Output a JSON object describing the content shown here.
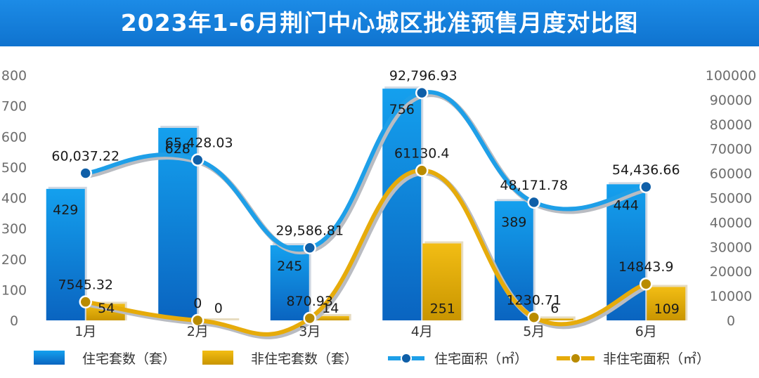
{
  "title": "2023年1-6月荆门中心城区批准预售月度对比图",
  "colors": {
    "title_bg": "#1c8be6",
    "bar_res": "#1a8ae0",
    "bar_nonres": "#e3ad10",
    "line_res": "#1e9fe8",
    "line_nonres": "#e6ab0a"
  },
  "chart_data": {
    "type": "bar+line",
    "categories": [
      "1月",
      "2月",
      "3月",
      "4月",
      "5月",
      "6月"
    ],
    "y_left": {
      "min": 0,
      "max": 800,
      "ticks": [
        0,
        100,
        200,
        300,
        400,
        500,
        600,
        700,
        800
      ]
    },
    "y_right": {
      "min": 0,
      "max": 100000,
      "ticks": [
        0,
        10000,
        20000,
        30000,
        40000,
        50000,
        60000,
        70000,
        80000,
        90000,
        100000
      ]
    },
    "series": [
      {
        "name": "住宅套数（套）",
        "kind": "bar",
        "axis": "left",
        "values": [
          429,
          628,
          245,
          756,
          389,
          444
        ],
        "labels": [
          "429",
          "628",
          "245",
          "756",
          "389",
          "444"
        ]
      },
      {
        "name": "非住宅套数（套）",
        "kind": "bar",
        "axis": "left",
        "values": [
          54,
          0,
          14,
          251,
          6,
          109
        ],
        "labels": [
          "54",
          "0",
          "14",
          "251",
          "6",
          "109"
        ]
      },
      {
        "name": "住宅面积（㎡）",
        "kind": "line",
        "axis": "right",
        "values": [
          60037.22,
          65428.03,
          29586.81,
          92796.93,
          48171.78,
          54436.66
        ],
        "labels": [
          "60,037.22",
          "65,428.03",
          "29,586.81",
          "92,796.93",
          "48,171.78",
          "54,436.66"
        ]
      },
      {
        "name": "非住宅面积（㎡）",
        "kind": "line",
        "axis": "right",
        "values": [
          7545.32,
          0,
          870.93,
          61130.4,
          1230.71,
          14843.9
        ],
        "labels": [
          "7545.32",
          "0",
          "870.93",
          "61130.4",
          "1230.71",
          "14843.9"
        ]
      }
    ],
    "legend_position": "bottom",
    "grid": false
  }
}
